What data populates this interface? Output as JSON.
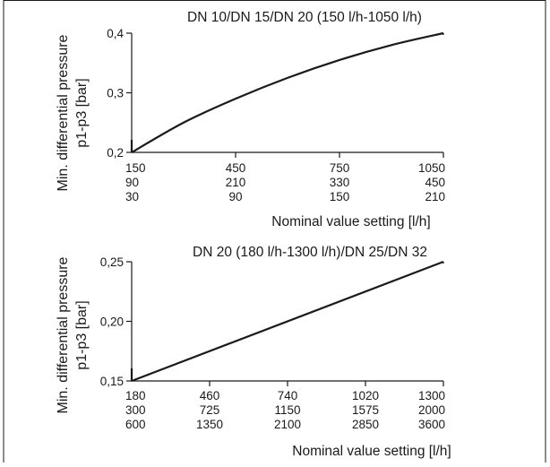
{
  "chart_data": [
    {
      "type": "line",
      "title": "DN 10/DN 15/DN 20 (150 l/h-1050 l/h)",
      "ylabel_line1": "Min. differential pressure",
      "ylabel_line2": "p1-p3 [bar]",
      "xlabel": "Nominal value setting [l/h]",
      "ylim": [
        0.2,
        0.4
      ],
      "yticks": [
        "0,2",
        "0,3",
        "0,4"
      ],
      "xlim": [
        150,
        1050
      ],
      "x_tick_rows": [
        [
          "150",
          "450",
          "750",
          "1050"
        ],
        [
          "90",
          "210",
          "330",
          "450"
        ],
        [
          "30",
          "90",
          "150",
          "210"
        ]
      ],
      "series": [
        {
          "x": [
            150,
            300,
            450,
            600,
            750,
            900,
            1050
          ],
          "y": [
            0.2,
            0.25,
            0.29,
            0.325,
            0.355,
            0.38,
            0.4
          ]
        }
      ]
    },
    {
      "type": "line",
      "title": "DN 20 (180 l/h-1300 l/h)/DN 25/DN 32",
      "ylabel_line1": "Min. differential pressure",
      "ylabel_line2": "p1-p3 [bar]",
      "xlabel": "Nominal value setting [l/h]",
      "ylim": [
        0.15,
        0.25
      ],
      "yticks": [
        "0,15",
        "0,20",
        "0,25"
      ],
      "xlim": [
        180,
        1300
      ],
      "x_tick_rows": [
        [
          "180",
          "460",
          "740",
          "1020",
          "1300"
        ],
        [
          "300",
          "725",
          "1150",
          "1575",
          "2000"
        ],
        [
          "600",
          "1350",
          "2100",
          "2850",
          "3600"
        ]
      ],
      "series": [
        {
          "x": [
            180,
            1300
          ],
          "y": [
            0.15,
            0.25
          ]
        }
      ]
    }
  ]
}
